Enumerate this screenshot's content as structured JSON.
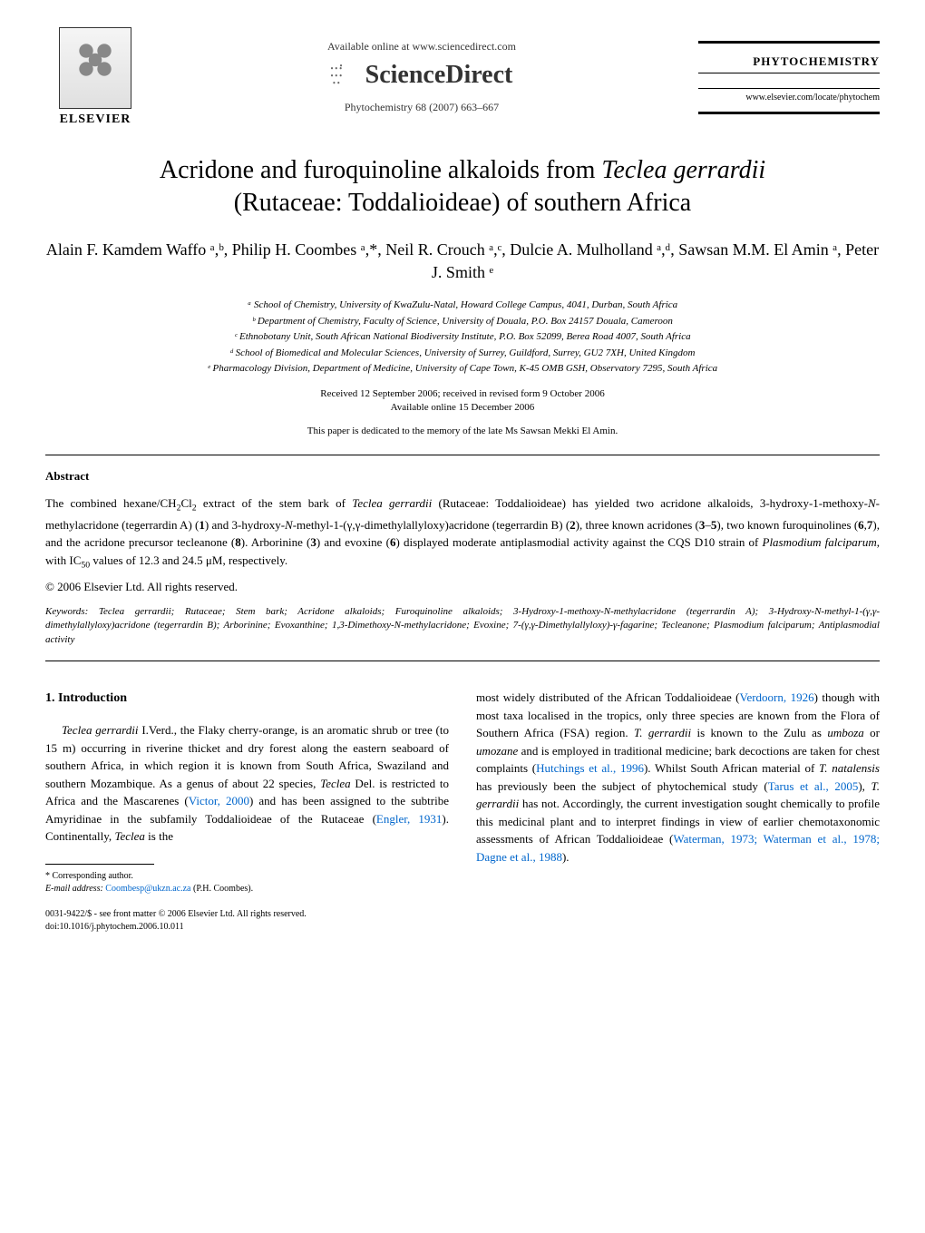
{
  "header": {
    "available_online": "Available online at www.sciencedirect.com",
    "sciencedirect": "ScienceDirect",
    "elsevier": "ELSEVIER",
    "journal_ref": "Phytochemistry 68 (2007) 663–667",
    "journal_name": "PHYTOCHEMISTRY",
    "journal_url": "www.elsevier.com/locate/phytochem"
  },
  "title_line1": "Acridone and furoquinoline alkaloids from ",
  "title_italic": "Teclea gerrardii",
  "title_line2": "(Rutaceae: Toddalioideae) of southern Africa",
  "authors": "Alain F. Kamdem Waffo ᵃ,ᵇ, Philip H. Coombes ᵃ,*, Neil R. Crouch ᵃ,ᶜ, Dulcie A. Mulholland ᵃ,ᵈ, Sawsan M.M. El Amin ᵃ, Peter J. Smith ᵉ",
  "affiliations": {
    "a": "ᵃ School of Chemistry, University of KwaZulu-Natal, Howard College Campus, 4041, Durban, South Africa",
    "b": "ᵇ Department of Chemistry, Faculty of Science, University of Douala, P.O. Box 24157 Douala, Cameroon",
    "c": "ᶜ Ethnobotany Unit, South African National Biodiversity Institute, P.O. Box 52099, Berea Road 4007, South Africa",
    "d": "ᵈ School of Biomedical and Molecular Sciences, University of Surrey, Guildford, Surrey, GU2 7XH, United Kingdom",
    "e": "ᵉ Pharmacology Division, Department of Medicine, University of Cape Town, K-45 OMB GSH, Observatory 7295, South Africa"
  },
  "received": {
    "line1": "Received 12 September 2006; received in revised form 9 October 2006",
    "line2": "Available online 15 December 2006"
  },
  "dedication": "This paper is dedicated to the memory of the late Ms Sawsan Mekki El Amin.",
  "abstract": {
    "heading": "Abstract",
    "copyright": "© 2006 Elsevier Ltd. All rights reserved."
  },
  "keywords_label": "Keywords: ",
  "keywords_content": "Teclea gerrardii",
  "keywords_rest": "; Rutaceae; Stem bark; Acridone alkaloids; Furoquinoline alkaloids; 3-Hydroxy-1-methoxy-N-methylacridone (tegerrardin A); 3-Hydroxy-N-methyl-1-(γ,γ-dimethylallyloxy)acridone (tegerrardin B); Arborinine; Evoxanthine; 1,3-Dimethoxy-N-methylacridone; Evoxine; 7-(γ,γ-Dimethylallyloxy)-γ-fagarine; Tecleanone; Plasmodium falciparum; Antiplasmodial activity",
  "intro": {
    "heading": "1. Introduction"
  },
  "footnote": {
    "corresponding": "* Corresponding author.",
    "email_label": "E-mail address: ",
    "email": "Coombesp@ukzn.ac.za",
    "email_suffix": " (P.H. Coombes).",
    "copyright_line": "0031-9422/$ - see front matter © 2006 Elsevier Ltd. All rights reserved.",
    "doi": "doi:10.1016/j.phytochem.2006.10.011"
  },
  "colors": {
    "text": "#000000",
    "background": "#ffffff",
    "link": "#0066cc"
  },
  "typography": {
    "title_fontsize": 28,
    "authors_fontsize": 18,
    "body_fontsize": 13,
    "affiliation_fontsize": 11,
    "footnote_fontsize": 10,
    "font_family": "Times New Roman"
  }
}
